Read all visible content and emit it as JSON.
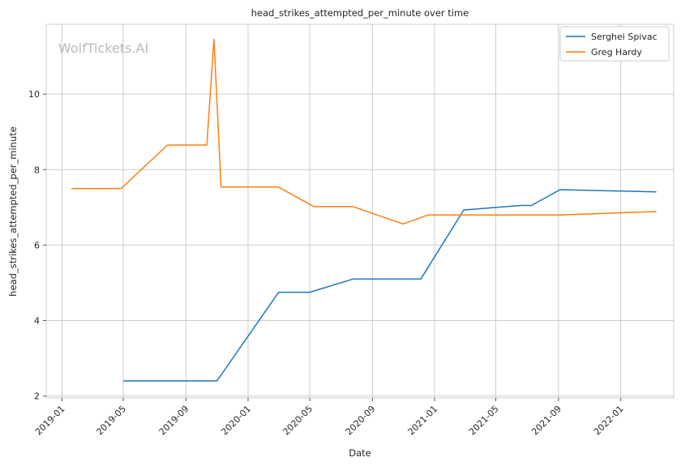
{
  "chart_data": {
    "type": "line",
    "title": "head_strikes_attempted_per_minute over time",
    "xlabel": "Date",
    "ylabel": "head_strikes_attempted_per_minute",
    "watermark": "WolfTickets.AI",
    "xlim": [
      "2018-12-01",
      "2022-04-15"
    ],
    "ylim": [
      1.95,
      11.85
    ],
    "x_ticks": [
      "2019-01",
      "2019-05",
      "2019-09",
      "2020-01",
      "2020-05",
      "2020-09",
      "2021-01",
      "2021-05",
      "2021-09",
      "2022-01"
    ],
    "y_ticks": [
      2,
      4,
      6,
      8,
      10
    ],
    "grid": true,
    "legend": "top-right",
    "series": [
      {
        "name": "Serghei Spivac",
        "color": "#1f77b4",
        "points": [
          [
            "2019-05-01",
            2.4
          ],
          [
            "2019-11-01",
            2.4
          ],
          [
            "2020-03-01",
            4.75
          ],
          [
            "2020-05-01",
            4.75
          ],
          [
            "2020-07-25",
            5.1
          ],
          [
            "2020-12-05",
            5.1
          ],
          [
            "2021-02-27",
            6.93
          ],
          [
            "2021-06-19",
            7.05
          ],
          [
            "2021-07-10",
            7.05
          ],
          [
            "2021-09-04",
            7.47
          ],
          [
            "2022-03-12",
            7.41
          ]
        ]
      },
      {
        "name": "Greg Hardy",
        "color": "#ff7f0e",
        "points": [
          [
            "2019-01-19",
            7.5
          ],
          [
            "2019-04-27",
            7.5
          ],
          [
            "2019-07-27",
            8.65
          ],
          [
            "2019-10-12",
            8.65
          ],
          [
            "2019-10-26",
            11.45
          ],
          [
            "2019-11-09",
            7.54
          ],
          [
            "2020-02-29",
            7.54
          ],
          [
            "2020-05-09",
            7.02
          ],
          [
            "2020-07-25",
            7.02
          ],
          [
            "2020-10-31",
            6.56
          ],
          [
            "2020-12-19",
            6.8
          ],
          [
            "2021-09-04",
            6.8
          ],
          [
            "2022-03-12",
            6.89
          ]
        ]
      }
    ]
  }
}
